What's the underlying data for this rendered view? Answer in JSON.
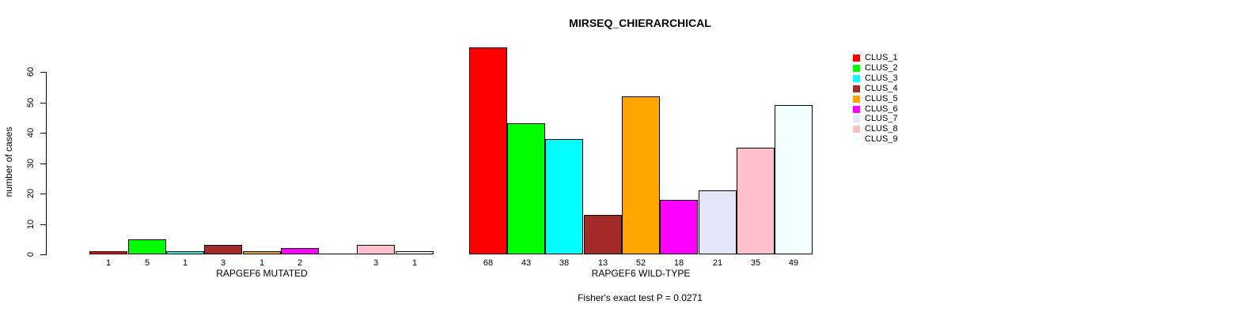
{
  "chart_data": {
    "type": "bar",
    "title": "MIRSEQ_CHIERARCHICAL",
    "ylabel": "number of cases",
    "xlabel": "",
    "ylim": [
      0,
      60
    ],
    "yticks": [
      0,
      10,
      20,
      30,
      40,
      50,
      60
    ],
    "grid": false,
    "legend_position": "right",
    "footer": "Fisher's exact test P = 0.0271",
    "colors": [
      "#FF0000",
      "#00FF00",
      "#00FFFF",
      "#A52A2A",
      "#FFA500",
      "#FF00FF",
      "#E6E6FA",
      "#FFC0CB",
      "#F0FFFF"
    ],
    "legend": [
      {
        "label": "CLUS_1",
        "color": "#FF0000"
      },
      {
        "label": "CLUS_2",
        "color": "#00FF00"
      },
      {
        "label": "CLUS_3",
        "color": "#00FFFF"
      },
      {
        "label": "CLUS_4",
        "color": "#A52A2A"
      },
      {
        "label": "CLUS_5",
        "color": "#FFA500"
      },
      {
        "label": "CLUS_6",
        "color": "#FF00FF"
      },
      {
        "label": "CLUS_7",
        "color": "#E6E6FA"
      },
      {
        "label": "CLUS_8",
        "color": "#FFC0CB"
      },
      {
        "label": "CLUS_9",
        "color": "#F0FFFF"
      }
    ],
    "groups": [
      {
        "label": "RAPGEF6 MUTATED",
        "values": [
          1,
          5,
          1,
          3,
          1,
          2,
          0,
          3,
          1
        ]
      },
      {
        "label": "RAPGEF6 WILD-TYPE",
        "values": [
          68,
          43,
          38,
          13,
          52,
          18,
          21,
          35,
          49
        ]
      }
    ]
  }
}
